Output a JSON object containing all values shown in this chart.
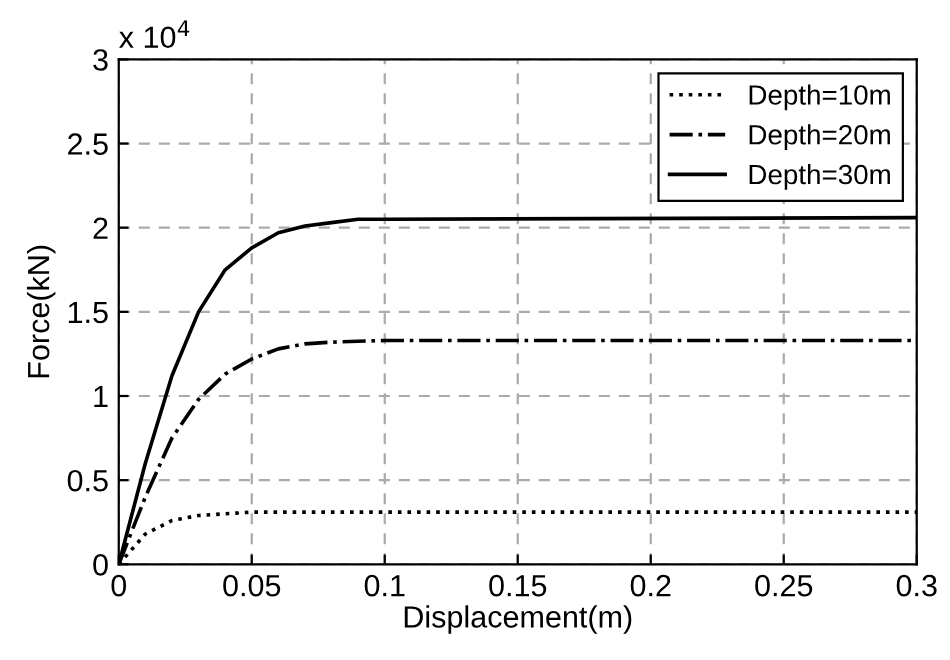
{
  "chart_data": {
    "type": "line",
    "xlabel": "Displacement(m)",
    "ylabel": "Force(kN)",
    "annotations": [
      "x 10$^{4}$"
    ],
    "series": [
      {
        "name": "Depth=10m",
        "color": "#000000",
        "line_style": "dotted",
        "x": [
          0,
          0.01,
          0.02,
          0.03,
          0.04,
          0.05,
          0.1,
          0.3
        ],
        "values": [
          0,
          0.18,
          0.26,
          0.29,
          0.3,
          0.31,
          0.31,
          0.31
        ]
      },
      {
        "name": "Depth=20m",
        "color": "#000000",
        "line_style": "dashdot",
        "x": [
          0,
          0.01,
          0.02,
          0.03,
          0.04,
          0.05,
          0.06,
          0.07,
          0.08,
          0.1,
          0.3
        ],
        "values": [
          0,
          0.4,
          0.75,
          0.98,
          1.13,
          1.22,
          1.28,
          1.31,
          1.32,
          1.33,
          1.33
        ]
      },
      {
        "name": "Depth=30m",
        "color": "#000000",
        "line_style": "solid",
        "x": [
          0,
          0.01,
          0.02,
          0.03,
          0.04,
          0.05,
          0.06,
          0.07,
          0.08,
          0.09,
          0.1,
          0.3
        ],
        "values": [
          0,
          0.6,
          1.12,
          1.5,
          1.75,
          1.88,
          1.97,
          2.01,
          2.03,
          2.05,
          2.05,
          2.06
        ]
      }
    ],
    "xlim": [
      0,
      0.3
    ],
    "xticks": [
      0,
      0.05,
      0.1,
      0.15,
      0.2,
      0.25,
      0.3
    ],
    "ylim": [
      0,
      3
    ],
    "yticks": [
      0,
      0.5,
      1,
      1.5,
      2,
      2.5,
      3
    ],
    "grid": true,
    "legend": "top right",
    "marker": "none"
  }
}
